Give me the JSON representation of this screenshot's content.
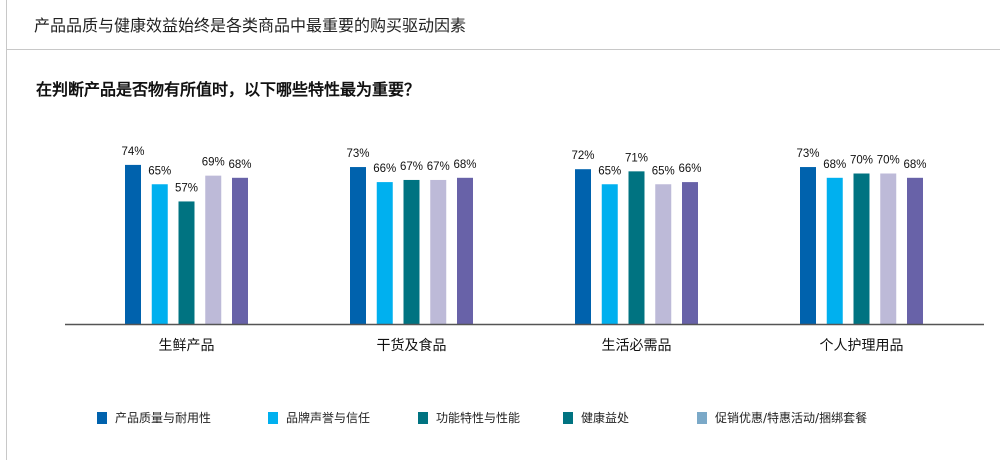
{
  "header": {
    "title": "产品品质与健康效益始终是各类商品中最重要的购买驱动因素"
  },
  "chart_data": {
    "type": "bar",
    "title": "在判断产品是否物有所值时，以下哪些特性最为重要？",
    "categories": [
      "生鲜产品",
      "干货及食品",
      "生活必需品",
      "个人护理用品"
    ],
    "bar_colors": [
      "#0062ad",
      "#00b0ef",
      "#007381",
      "#bdbad8",
      "#6862a8"
    ],
    "bar_values": [
      [
        74,
        65,
        57,
        69,
        68
      ],
      [
        73,
        66,
        67,
        67,
        68
      ],
      [
        72,
        65,
        71,
        65,
        66
      ],
      [
        73,
        68,
        70,
        70,
        68
      ]
    ],
    "value_suffix": "%",
    "legend": [
      {
        "name": "产品质量与耐用性",
        "color": "#0062ad"
      },
      {
        "name": "品牌声誉与信任",
        "color": "#00b0ef"
      },
      {
        "name": "功能特性与性能",
        "color": "#007381"
      },
      {
        "name": "健康益处",
        "color": "#007381"
      },
      {
        "name": "促销优惠/特惠活动/捆绑套餐",
        "color": "#7ba9c8"
      }
    ],
    "legend_position": "bottom",
    "grid": false
  }
}
